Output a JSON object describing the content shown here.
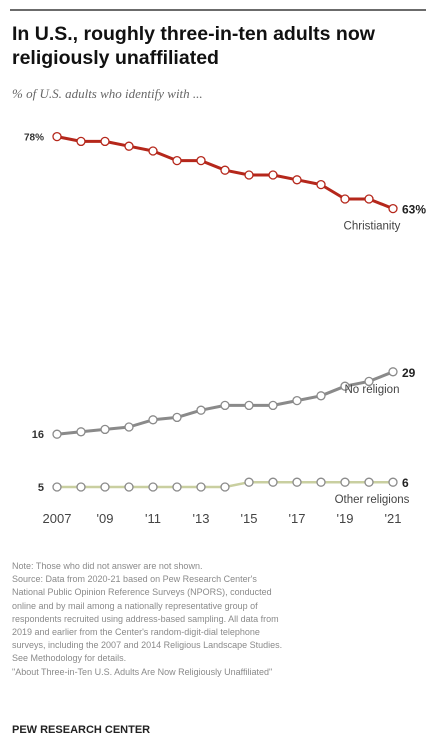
{
  "header": {
    "title": "In U.S., roughly three-in-ten adults now religiously unaffiliated",
    "subtitle": "% of U.S. adults who identify with ..."
  },
  "chart_data": {
    "type": "line",
    "title": "In U.S., roughly three-in-ten adults now religiously unaffiliated",
    "subtitle": "% of U.S. adults who identify with ...",
    "xlabel": "",
    "ylabel": "",
    "x": [
      2007,
      2008,
      2009,
      2010,
      2011,
      2012,
      2013,
      2014,
      2015,
      2016,
      2017,
      2018,
      2019,
      2020,
      2021
    ],
    "x_tick_labels": [
      {
        "x": 2007,
        "label": "2007"
      },
      {
        "x": 2009,
        "label": "'09"
      },
      {
        "x": 2011,
        "label": "'11"
      },
      {
        "x": 2013,
        "label": "'13"
      },
      {
        "x": 2015,
        "label": "'15"
      },
      {
        "x": 2017,
        "label": "'17"
      },
      {
        "x": 2019,
        "label": "'19"
      },
      {
        "x": 2021,
        "label": "'21"
      }
    ],
    "ylim": [
      0,
      80
    ],
    "grid": false,
    "legend": "labels at line ends",
    "series": [
      {
        "name": "Christianity",
        "color": "#b5271b",
        "values": [
          78,
          77,
          77,
          76,
          75,
          73,
          73,
          71,
          70,
          70,
          69,
          68,
          65,
          65,
          63
        ],
        "start_label": "78%",
        "end_label": "63%"
      },
      {
        "name": "No religion",
        "color": "#8a8a8a",
        "values": [
          16,
          16.5,
          17,
          17.5,
          19,
          19.5,
          21,
          22,
          22,
          22,
          23,
          24,
          26,
          27,
          29
        ],
        "start_label": "16",
        "end_label": "29"
      },
      {
        "name": "Other religions",
        "color": "#c9cfa0",
        "values": [
          5,
          5,
          5,
          5,
          5,
          5,
          5,
          5,
          6,
          6,
          6,
          6,
          6,
          6,
          6
        ],
        "start_label": "5",
        "end_label": "6"
      }
    ]
  },
  "footnote": {
    "lines": [
      "Note: Those who did not answer are not shown.",
      "Source: Data from 2020-21 based on Pew Research Center's",
      "National Public Opinion Reference Surveys (NPORS), conducted",
      "online and by mail among a nationally representative group of",
      "respondents recruited using address-based sampling. All data from",
      "2019 and earlier from the Center's random-digit-dial telephone",
      "surveys, including the 2007 and 2014 Religious Landscape Studies.",
      "See Methodology for details.",
      "\"About Three-in-Ten U.S. Adults Are Now Religiously Unaffiliated\""
    ],
    "org": "PEW RESEARCH CENTER"
  }
}
